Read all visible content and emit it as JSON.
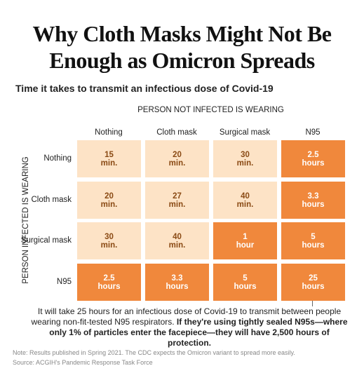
{
  "title_lines": [
    "Why Cloth Masks Might Not Be",
    "Enough as Omicron Spreads"
  ],
  "subtitle": "Time it takes to transmit an infectious dose of Covid-19",
  "column_header": "PERSON NOT INFECTED IS WEARING",
  "row_header": "PERSON INFECTED IS WEARING",
  "columns": [
    "Nothing",
    "Cloth mask",
    "Surgical mask",
    "N95"
  ],
  "colors": {
    "light": "#fde3c6",
    "dark": "#f0883c"
  },
  "rows": [
    {
      "label": "Nothing",
      "cells": [
        {
          "amount": "15",
          "unit": "min.",
          "shade": "light"
        },
        {
          "amount": "20",
          "unit": "min.",
          "shade": "light"
        },
        {
          "amount": "30",
          "unit": "min.",
          "shade": "light"
        },
        {
          "amount": "2.5",
          "unit": "hours",
          "shade": "dark"
        }
      ]
    },
    {
      "label": "Cloth mask",
      "cells": [
        {
          "amount": "20",
          "unit": "min.",
          "shade": "light"
        },
        {
          "amount": "27",
          "unit": "min.",
          "shade": "light"
        },
        {
          "amount": "40",
          "unit": "min.",
          "shade": "light"
        },
        {
          "amount": "3.3",
          "unit": "hours",
          "shade": "dark"
        }
      ]
    },
    {
      "label": "Surgical mask",
      "cells": [
        {
          "amount": "30",
          "unit": "min.",
          "shade": "light"
        },
        {
          "amount": "40",
          "unit": "min.",
          "shade": "light"
        },
        {
          "amount": "1",
          "unit": "hour",
          "shade": "dark"
        },
        {
          "amount": "5",
          "unit": "hours",
          "shade": "dark"
        }
      ]
    },
    {
      "label": "N95",
      "cells": [
        {
          "amount": "2.5",
          "unit": "hours",
          "shade": "dark"
        },
        {
          "amount": "3.3",
          "unit": "hours",
          "shade": "dark"
        },
        {
          "amount": "5",
          "unit": "hours",
          "shade": "dark"
        },
        {
          "amount": "25",
          "unit": "hours",
          "shade": "dark"
        }
      ]
    }
  ],
  "annotation": {
    "normal": "It will take 25 hours for an infectious dose of Covid-19 to transmit between people wearing non-fit-tested N95 respirators.",
    "bold": "If they're using tightly sealed N95s—where only 1% of particles enter the facepiece—they will have 2,500 hours of protection."
  },
  "note": "Note: Results published in Spring 2021. The CDC expects the Omicron variant to spread more easily.",
  "source": "Source: ACGIH's Pandemic Response Task Force"
}
